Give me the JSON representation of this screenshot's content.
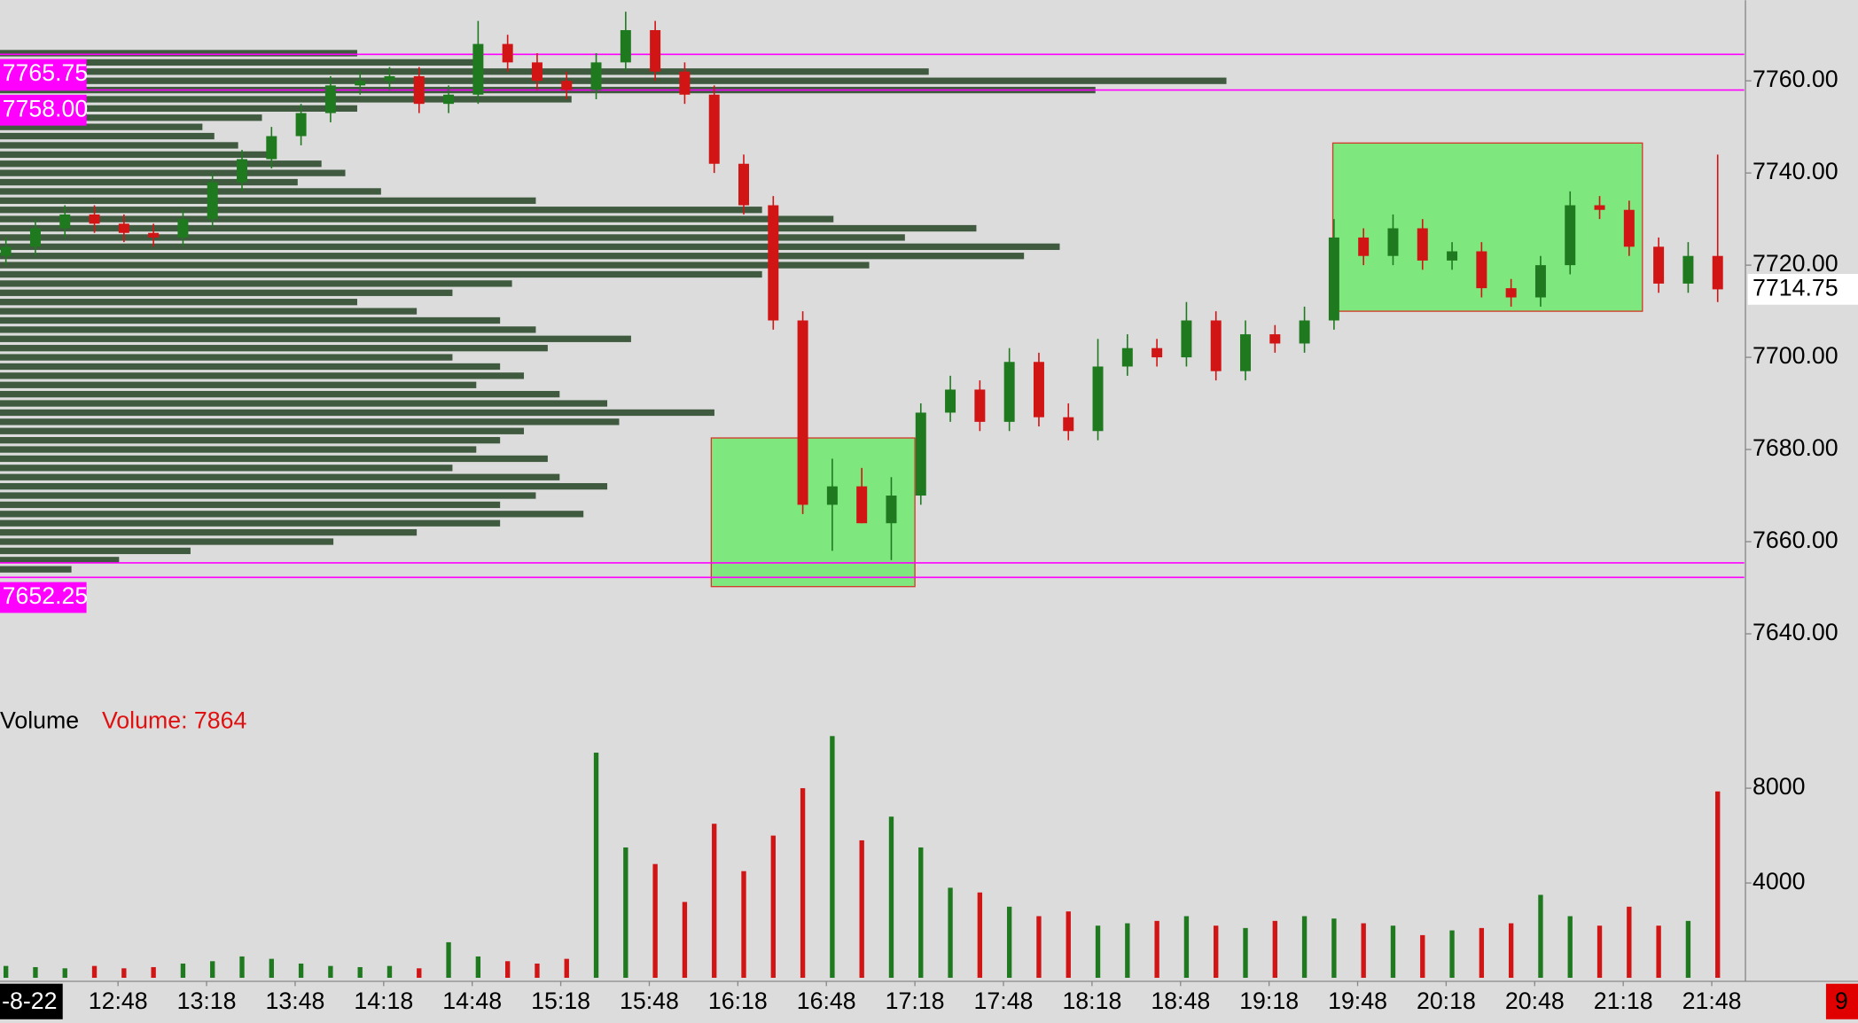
{
  "chart_data": {
    "type": "candlestick",
    "x": [
      730,
      740,
      750,
      760,
      770,
      780,
      790,
      800,
      810,
      820,
      830,
      840,
      850,
      860,
      870,
      880,
      890,
      900,
      910,
      920,
      930,
      940,
      950,
      960,
      970,
      980,
      990,
      1000,
      1010,
      1020,
      1030,
      1040,
      1050,
      1060,
      1070,
      1080,
      1090,
      1100,
      1110,
      1120,
      1130,
      1140,
      1150,
      1160,
      1170,
      1180,
      1190,
      1200,
      1210,
      1220,
      1230,
      1240,
      1250,
      1260,
      1270,
      1280,
      1290,
      1300,
      1310
    ],
    "open": [
      7722,
      7724,
      7728,
      7731,
      7729,
      7727,
      7726,
      7730,
      7738,
      7743,
      7748,
      7753,
      7759,
      7760,
      7761,
      7755,
      7757,
      7768,
      7764,
      7760,
      7758,
      7764,
      7771,
      7762,
      7757,
      7742,
      7733,
      7708,
      7668,
      7672,
      7664,
      7670,
      7688,
      7693,
      7686,
      7699,
      7687,
      7684,
      7698,
      7702,
      7700,
      7708,
      7697,
      7705,
      7703,
      7708,
      7726,
      7722,
      7728,
      7721,
      7723,
      7715,
      7713,
      7720,
      7733,
      7732,
      7724,
      7716,
      7722
    ],
    "high": [
      7726,
      7730,
      7733,
      7733,
      7731,
      7729,
      7732,
      7740,
      7745,
      7750,
      7755,
      7761,
      7762,
      7763,
      7763,
      7759,
      7773,
      7770,
      7766,
      7762,
      7766,
      7775,
      7773,
      7764,
      7759,
      7744,
      7735,
      7710,
      7678,
      7676,
      7674,
      7690,
      7696,
      7695,
      7702,
      7701,
      7690,
      7704,
      7705,
      7704,
      7712,
      7710,
      7708,
      7707,
      7711,
      7730,
      7728,
      7731,
      7730,
      7725,
      7725,
      7717,
      7722,
      7736,
      7735,
      7734,
      7726,
      7725,
      7744
    ],
    "low": [
      7720,
      7722,
      7726,
      7727,
      7725,
      7724,
      7724,
      7728,
      7736,
      7741,
      7746,
      7751,
      7757,
      7758,
      7753,
      7753,
      7755,
      7762,
      7758,
      7756,
      7756,
      7762,
      7760,
      7755,
      7740,
      7731,
      7706,
      7666,
      7658,
      7664,
      7656,
      7668,
      7686,
      7684,
      7684,
      7685,
      7682,
      7682,
      7696,
      7698,
      7698,
      7695,
      7695,
      7701,
      7701,
      7706,
      7720,
      7720,
      7719,
      7719,
      7713,
      7711,
      7711,
      7718,
      7730,
      7722,
      7714,
      7714,
      7712
    ],
    "close": [
      7724,
      7728,
      7731,
      7729,
      7727,
      7726,
      7730,
      7738,
      7743,
      7748,
      7753,
      7759,
      7760,
      7761,
      7755,
      7757,
      7768,
      7764,
      7760,
      7758,
      7764,
      7771,
      7762,
      7757,
      7742,
      7733,
      7708,
      7668,
      7672,
      7664,
      7670,
      7688,
      7693,
      7686,
      7699,
      7687,
      7684,
      7698,
      7702,
      7700,
      7708,
      7697,
      7705,
      7703,
      7708,
      7726,
      7722,
      7728,
      7721,
      7723,
      7715,
      7713,
      7720,
      7733,
      7732,
      7724,
      7716,
      7722,
      7714.75
    ],
    "volume": [
      500,
      450,
      400,
      500,
      400,
      450,
      600,
      700,
      900,
      800,
      600,
      500,
      450,
      500,
      400,
      1500,
      900,
      700,
      600,
      800,
      9500,
      5500,
      4800,
      3200,
      6500,
      4500,
      6000,
      8000,
      10200,
      5800,
      6800,
      5500,
      3800,
      3600,
      3000,
      2600,
      2800,
      2200,
      2300,
      2400,
      2600,
      2200,
      2100,
      2400,
      2600,
      2500,
      2300,
      2200,
      1800,
      2000,
      2100,
      2300,
      3500,
      2600,
      2200,
      3000,
      2200,
      2400,
      7864
    ],
    "up_color": "#1f7a1f",
    "down_color": "#d11414",
    "xlim": [
      728,
      1319
    ],
    "xticks": [
      {
        "value": 768,
        "label": "12:48"
      },
      {
        "value": 798,
        "label": "13:18"
      },
      {
        "value": 828,
        "label": "13:48"
      },
      {
        "value": 858,
        "label": "14:18"
      },
      {
        "value": 888,
        "label": "14:48"
      },
      {
        "value": 918,
        "label": "15:18"
      },
      {
        "value": 948,
        "label": "15:48"
      },
      {
        "value": 978,
        "label": "16:18"
      },
      {
        "value": 1008,
        "label": "16:48"
      },
      {
        "value": 1038,
        "label": "17:18"
      },
      {
        "value": 1068,
        "label": "17:48"
      },
      {
        "value": 1098,
        "label": "18:18"
      },
      {
        "value": 1128,
        "label": "18:48"
      },
      {
        "value": 1158,
        "label": "19:18"
      },
      {
        "value": 1188,
        "label": "19:48"
      },
      {
        "value": 1218,
        "label": "20:18"
      },
      {
        "value": 1248,
        "label": "20:48"
      },
      {
        "value": 1278,
        "label": "21:18"
      },
      {
        "value": 1308,
        "label": "21:48"
      }
    ],
    "date_tick": {
      "value": 738,
      "label": "-8-22"
    },
    "ylim": [
      7633.5,
      7777.5
    ],
    "yticks": [
      {
        "value": 7640,
        "label": "7640.00"
      },
      {
        "value": 7660,
        "label": "7660.00"
      },
      {
        "value": 7680,
        "label": "7680.00"
      },
      {
        "value": 7700,
        "label": "7700.00"
      },
      {
        "value": 7720,
        "label": "7720.00"
      },
      {
        "value": 7740,
        "label": "7740.00"
      },
      {
        "value": 7760,
        "label": "7760.00"
      }
    ],
    "vlim": [
      0,
      10500
    ],
    "vticks": [
      4000,
      8000
    ],
    "volume_title": "Volume",
    "volume_legend": "Volume: 7864",
    "levels": [
      {
        "value": 7765.75,
        "label": "7765.75"
      },
      {
        "value": 7758,
        "label": "7758.00"
      },
      {
        "value": 7655.4
      },
      {
        "value": 7652.25,
        "label": "7652.25"
      }
    ],
    "level_color": "#ff00ff",
    "last_price": {
      "value": 7714.75,
      "label": "7714.75"
    },
    "zones": [
      {
        "x": [
          969,
          1038
        ],
        "y": [
          7650.25,
          7682.5
        ]
      },
      {
        "x": [
          1179.6,
          1284.5
        ],
        "y": [
          7710,
          7746.5
        ]
      }
    ],
    "zone_color": "#7ee87e",
    "volume_profile": {
      "color": "#3f5a3f",
      "prices": [
        7766,
        7764,
        7762,
        7760,
        7758,
        7756,
        7754,
        7752,
        7750,
        7748,
        7746,
        7744,
        7742,
        7740,
        7738,
        7736,
        7734,
        7732,
        7730,
        7728,
        7726,
        7724,
        7722,
        7720,
        7718,
        7716,
        7714,
        7712,
        7710,
        7708,
        7706,
        7704,
        7702,
        7700,
        7698,
        7696,
        7694,
        7692,
        7690,
        7688,
        7686,
        7684,
        7682,
        7680,
        7678,
        7676,
        7674,
        7672,
        7670,
        7668,
        7666,
        7664,
        7662,
        7660,
        7658,
        7656,
        7654
      ],
      "values": [
        300,
        400,
        780,
        1030,
        920,
        480,
        300,
        220,
        170,
        180,
        200,
        230,
        270,
        290,
        250,
        320,
        450,
        640,
        700,
        820,
        760,
        890,
        860,
        730,
        640,
        430,
        380,
        300,
        350,
        420,
        450,
        530,
        460,
        380,
        420,
        440,
        400,
        470,
        510,
        600,
        520,
        440,
        420,
        400,
        460,
        380,
        470,
        510,
        450,
        420,
        490,
        420,
        350,
        280,
        160,
        100,
        60
      ]
    },
    "corner_label": "9"
  }
}
